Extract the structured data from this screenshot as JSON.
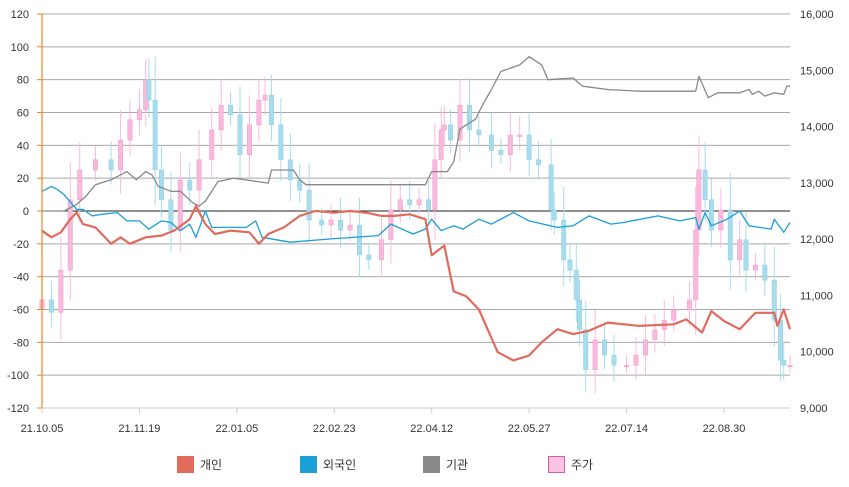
{
  "chart_data": {
    "type": "line",
    "title": "",
    "xlabel": "",
    "ylabel_left": "",
    "ylabel_right": "",
    "x_unit": "trading day index",
    "x_range": [
      0,
      238
    ],
    "x_ticks": [
      {
        "day": 0,
        "label": "21.10.05"
      },
      {
        "day": 31,
        "label": "21.11.19"
      },
      {
        "day": 62,
        "label": "22.01.05"
      },
      {
        "day": 93,
        "label": "22.02.23"
      },
      {
        "day": 124,
        "label": "22.04.12"
      },
      {
        "day": 155,
        "label": "22.05.27"
      },
      {
        "day": 186,
        "label": "22.07.14"
      },
      {
        "day": 217,
        "label": "22.08.30"
      }
    ],
    "y_left": {
      "range": [
        -120,
        120
      ],
      "step": 20,
      "ticks": [
        "120",
        "100",
        "80",
        "60",
        "40",
        "20",
        "0",
        "-20",
        "-40",
        "-60",
        "-80",
        "-100",
        "-120"
      ]
    },
    "y_right": {
      "range": [
        9000,
        16000
      ],
      "step": 1000,
      "ticks": [
        "16,000",
        "15,000",
        "14,000",
        "13,000",
        "12,000",
        "11,000",
        "10,000",
        "9,000"
      ]
    },
    "grid": true,
    "legend_position": "bottom",
    "series": [
      {
        "name": "개인",
        "axis": "left",
        "color": "#e06b5d",
        "width": 2.2,
        "points": [
          [
            0,
            -12
          ],
          [
            3,
            -16
          ],
          [
            6,
            -13
          ],
          [
            9,
            -5
          ],
          [
            11,
            -1
          ],
          [
            13,
            -8
          ],
          [
            17,
            -10
          ],
          [
            22,
            -20
          ],
          [
            25,
            -16
          ],
          [
            28,
            -20
          ],
          [
            33,
            -16
          ],
          [
            38,
            -15
          ],
          [
            42,
            -12
          ],
          [
            47,
            -5
          ],
          [
            49,
            3
          ],
          [
            52,
            -8
          ],
          [
            55,
            -14
          ],
          [
            60,
            -12
          ],
          [
            66,
            -13
          ],
          [
            69,
            -20
          ],
          [
            72,
            -14
          ],
          [
            77,
            -10
          ],
          [
            82,
            -3
          ],
          [
            87,
            0
          ],
          [
            93,
            -1
          ],
          [
            98,
            0
          ],
          [
            103,
            -1
          ],
          [
            108,
            -3
          ],
          [
            112,
            -3
          ],
          [
            117,
            -2
          ],
          [
            122,
            -5
          ],
          [
            124,
            -27
          ],
          [
            128,
            -21
          ],
          [
            131,
            -49
          ],
          [
            135,
            -52
          ],
          [
            139,
            -60
          ],
          [
            145,
            -86
          ],
          [
            150,
            -91
          ],
          [
            155,
            -88
          ],
          [
            159,
            -80
          ],
          [
            164,
            -72
          ],
          [
            169,
            -75
          ],
          [
            174,
            -73
          ],
          [
            180,
            -68
          ],
          [
            190,
            -70
          ],
          [
            201,
            -69
          ],
          [
            205,
            -66
          ],
          [
            210,
            -74
          ],
          [
            213,
            -61
          ],
          [
            217,
            -67
          ],
          [
            222,
            -72
          ],
          [
            227,
            -62
          ],
          [
            233,
            -62
          ],
          [
            234,
            -70
          ],
          [
            236,
            -60
          ],
          [
            238,
            -72
          ]
        ]
      },
      {
        "name": "외국인",
        "axis": "left",
        "color": "#1a9fd6",
        "width": 1.3,
        "points": [
          [
            0,
            12
          ],
          [
            3,
            15
          ],
          [
            5,
            13
          ],
          [
            7,
            10
          ],
          [
            11,
            1
          ],
          [
            13,
            1
          ],
          [
            16,
            -3
          ],
          [
            19,
            -2
          ],
          [
            24,
            -1
          ],
          [
            27,
            -6
          ],
          [
            31,
            -6
          ],
          [
            34,
            -11
          ],
          [
            38,
            -6
          ],
          [
            41,
            -7
          ],
          [
            44,
            -12
          ],
          [
            47,
            -8
          ],
          [
            49,
            -16
          ],
          [
            52,
            0
          ],
          [
            54,
            -10
          ],
          [
            61,
            -10
          ],
          [
            65,
            -10
          ],
          [
            68,
            -6
          ],
          [
            70,
            -16
          ],
          [
            79,
            -19
          ],
          [
            92,
            -17
          ],
          [
            107,
            -15
          ],
          [
            111,
            -8
          ],
          [
            118,
            -14
          ],
          [
            122,
            -11
          ],
          [
            124,
            -5
          ],
          [
            127,
            -12
          ],
          [
            131,
            -9
          ],
          [
            134,
            -11
          ],
          [
            139,
            -5
          ],
          [
            143,
            -8
          ],
          [
            150,
            -1
          ],
          [
            155,
            -6
          ],
          [
            164,
            -10
          ],
          [
            169,
            -9
          ],
          [
            174,
            -3
          ],
          [
            181,
            -8
          ],
          [
            185,
            -7
          ],
          [
            196,
            -3
          ],
          [
            203,
            -6
          ],
          [
            208,
            -4
          ],
          [
            209,
            -11
          ],
          [
            211,
            -1
          ],
          [
            213,
            -9
          ],
          [
            218,
            -5
          ],
          [
            222,
            0
          ],
          [
            225,
            -9
          ],
          [
            232,
            -11
          ],
          [
            233,
            -5
          ],
          [
            236,
            -13
          ],
          [
            238,
            -7
          ]
        ]
      },
      {
        "name": "기관",
        "axis": "left",
        "color": "#888888",
        "width": 1.3,
        "points": [
          [
            0,
            0
          ],
          [
            7,
            0
          ],
          [
            11,
            4
          ],
          [
            14,
            9
          ],
          [
            17,
            16
          ],
          [
            22,
            19
          ],
          [
            27,
            24
          ],
          [
            30,
            19
          ],
          [
            33,
            24
          ],
          [
            35,
            22
          ],
          [
            37,
            15
          ],
          [
            41,
            12
          ],
          [
            44,
            12
          ],
          [
            48,
            5
          ],
          [
            50,
            3
          ],
          [
            52,
            6
          ],
          [
            56,
            18
          ],
          [
            61,
            20
          ],
          [
            72,
            17
          ],
          [
            73,
            25
          ],
          [
            80,
            25
          ],
          [
            82,
            19
          ],
          [
            84,
            16
          ],
          [
            122,
            16
          ],
          [
            124,
            24
          ],
          [
            129,
            24
          ],
          [
            131,
            30
          ],
          [
            133,
            50
          ],
          [
            138,
            56
          ],
          [
            140,
            64
          ],
          [
            143,
            74
          ],
          [
            146,
            85
          ],
          [
            152,
            89
          ],
          [
            155,
            94
          ],
          [
            159,
            89
          ],
          [
            161,
            80
          ],
          [
            169,
            81
          ],
          [
            172,
            76
          ],
          [
            180,
            74
          ],
          [
            190,
            73
          ],
          [
            208,
            73
          ],
          [
            209,
            82
          ],
          [
            212,
            69
          ],
          [
            215,
            72
          ],
          [
            222,
            72
          ],
          [
            225,
            74
          ],
          [
            226,
            71
          ],
          [
            228,
            73
          ],
          [
            230,
            70
          ],
          [
            233,
            72
          ],
          [
            236,
            71
          ],
          [
            237,
            76
          ],
          [
            238,
            76
          ]
        ]
      },
      {
        "name": "주가",
        "axis": "right",
        "type": "candlestick",
        "up_color": "#f9b9dc",
        "down_color": "#a8dcec",
        "close": [
          [
            0,
            10920
          ],
          [
            3,
            10700
          ],
          [
            6,
            11450
          ],
          [
            9,
            12700
          ],
          [
            12,
            13230
          ],
          [
            17,
            13410
          ],
          [
            22,
            13230
          ],
          [
            25,
            13760
          ],
          [
            28,
            14120
          ],
          [
            31,
            14300
          ],
          [
            33,
            14830
          ],
          [
            34,
            14470
          ],
          [
            36,
            13230
          ],
          [
            38,
            12700
          ],
          [
            41,
            12160
          ],
          [
            44,
            13050
          ],
          [
            47,
            12870
          ],
          [
            50,
            13410
          ],
          [
            54,
            13940
          ],
          [
            57,
            14380
          ],
          [
            60,
            14210
          ],
          [
            63,
            13500
          ],
          [
            66,
            14030
          ],
          [
            69,
            14470
          ],
          [
            71,
            14560
          ],
          [
            73,
            14030
          ],
          [
            76,
            13410
          ],
          [
            79,
            13050
          ],
          [
            82,
            12870
          ],
          [
            85,
            12340
          ],
          [
            89,
            12250
          ],
          [
            92,
            12340
          ],
          [
            95,
            12160
          ],
          [
            98,
            12250
          ],
          [
            101,
            11720
          ],
          [
            104,
            11630
          ],
          [
            108,
            11990
          ],
          [
            111,
            12520
          ],
          [
            114,
            12700
          ],
          [
            117,
            12610
          ],
          [
            120,
            12700
          ],
          [
            123,
            12520
          ],
          [
            125,
            13410
          ],
          [
            127,
            13940
          ],
          [
            128,
            14030
          ],
          [
            130,
            13760
          ],
          [
            133,
            14380
          ],
          [
            136,
            13940
          ],
          [
            139,
            13850
          ],
          [
            143,
            13580
          ],
          [
            146,
            13500
          ],
          [
            149,
            13850
          ],
          [
            152,
            13850
          ],
          [
            155,
            13410
          ],
          [
            158,
            13320
          ],
          [
            162,
            12520
          ],
          [
            163,
            12340
          ],
          [
            166,
            11630
          ],
          [
            168,
            11450
          ],
          [
            170,
            10920
          ],
          [
            171,
            10390
          ],
          [
            173,
            9680
          ],
          [
            176,
            10210
          ],
          [
            179,
            9940
          ],
          [
            182,
            9760
          ],
          [
            186,
            9760
          ],
          [
            189,
            9940
          ],
          [
            192,
            10210
          ],
          [
            195,
            10390
          ],
          [
            198,
            10560
          ],
          [
            201,
            10740
          ],
          [
            206,
            10920
          ],
          [
            208,
            12160
          ],
          [
            209,
            13230
          ],
          [
            211,
            12700
          ],
          [
            213,
            12160
          ],
          [
            216,
            12520
          ],
          [
            219,
            11630
          ],
          [
            222,
            11990
          ],
          [
            224,
            11450
          ],
          [
            227,
            11540
          ],
          [
            230,
            11270
          ],
          [
            233,
            10560
          ],
          [
            235,
            9850
          ],
          [
            236,
            9760
          ],
          [
            238,
            9760
          ]
        ]
      }
    ]
  },
  "legend": [
    {
      "label": "개인",
      "color": "#e06b5d"
    },
    {
      "label": "외국인",
      "color": "#1a9fd6"
    },
    {
      "label": "기관",
      "color": "#888888"
    },
    {
      "label": "주가",
      "color": "#fcc4e2"
    }
  ]
}
